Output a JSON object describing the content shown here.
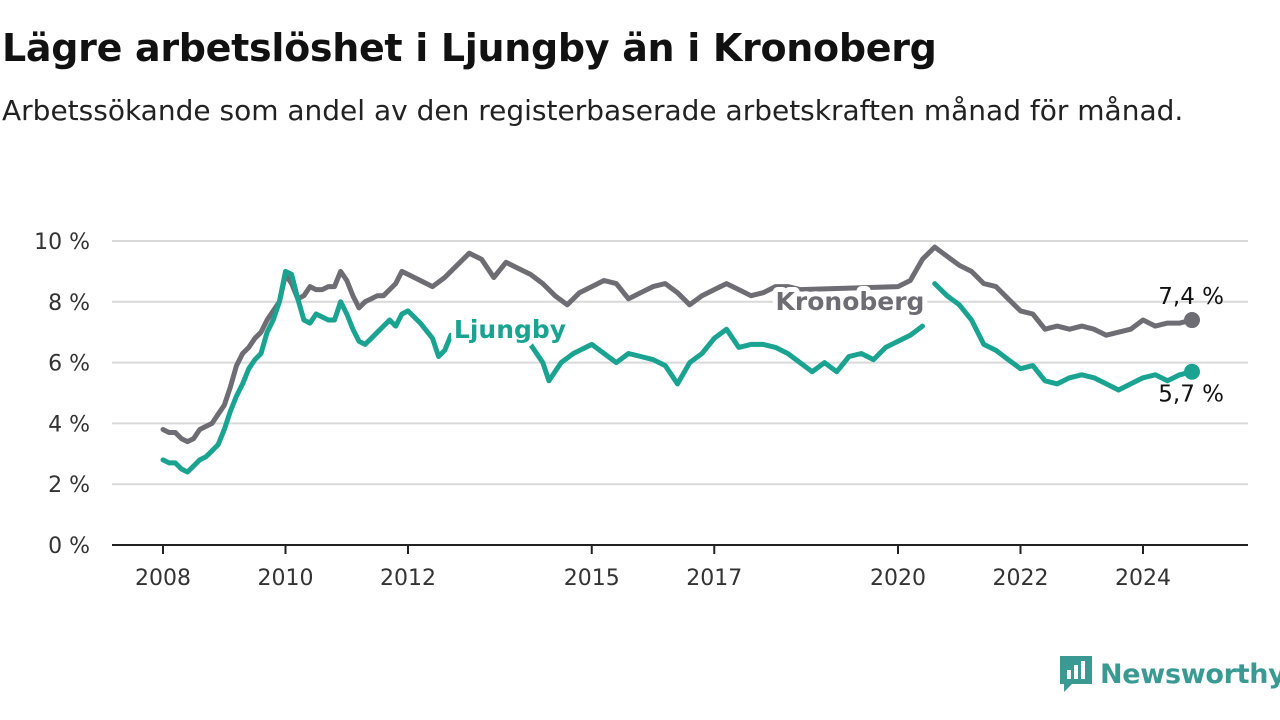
{
  "title": "Lägre arbetslöshet i Ljungby än i Kronoberg",
  "subtitle": "Arbetssökande som andel av den registerbaserade arbetskraften månad för månad.",
  "brand": {
    "name": "Newsworthy",
    "icon": "newsworthy-logo-icon"
  },
  "colors": {
    "kronoberg": "#6e6d73",
    "ljungby": "#1aa391",
    "grid": "#d9d9d9",
    "axis": "#222222"
  },
  "chart_data": {
    "type": "line",
    "unit": "%",
    "xlim": [
      2008,
      2025
    ],
    "ylim": [
      0,
      10
    ],
    "yticks": [
      0,
      2,
      4,
      6,
      8,
      10
    ],
    "ytick_labels": [
      "0 %",
      "2 %",
      "4 %",
      "6 %",
      "8 %",
      "10 %"
    ],
    "xticks": [
      2008,
      2010,
      2012,
      2015,
      2017,
      2020,
      2022,
      2024
    ],
    "xtick_labels": [
      "2008",
      "2010",
      "2012",
      "2015",
      "2017",
      "2020",
      "2022",
      "2024"
    ],
    "grid": true,
    "series": [
      {
        "name": "Kronoberg",
        "end_label": "7,4 %",
        "points": [
          [
            2008.0,
            3.8
          ],
          [
            2008.1,
            3.7
          ],
          [
            2008.2,
            3.7
          ],
          [
            2008.3,
            3.5
          ],
          [
            2008.4,
            3.4
          ],
          [
            2008.5,
            3.5
          ],
          [
            2008.6,
            3.8
          ],
          [
            2008.7,
            3.9
          ],
          [
            2008.8,
            4.0
          ],
          [
            2008.9,
            4.3
          ],
          [
            2009.0,
            4.6
          ],
          [
            2009.1,
            5.2
          ],
          [
            2009.2,
            5.9
          ],
          [
            2009.3,
            6.3
          ],
          [
            2009.4,
            6.5
          ],
          [
            2009.5,
            6.8
          ],
          [
            2009.6,
            7.0
          ],
          [
            2009.7,
            7.4
          ],
          [
            2009.8,
            7.7
          ],
          [
            2009.9,
            8.0
          ],
          [
            2010.0,
            8.9
          ],
          [
            2010.1,
            8.6
          ],
          [
            2010.2,
            8.1
          ],
          [
            2010.3,
            8.2
          ],
          [
            2010.4,
            8.5
          ],
          [
            2010.5,
            8.4
          ],
          [
            2010.6,
            8.4
          ],
          [
            2010.7,
            8.5
          ],
          [
            2010.8,
            8.5
          ],
          [
            2010.9,
            9.0
          ],
          [
            2011.0,
            8.7
          ],
          [
            2011.1,
            8.2
          ],
          [
            2011.2,
            7.8
          ],
          [
            2011.3,
            8.0
          ],
          [
            2011.4,
            8.1
          ],
          [
            2011.5,
            8.2
          ],
          [
            2011.6,
            8.2
          ],
          [
            2011.7,
            8.4
          ],
          [
            2011.8,
            8.6
          ],
          [
            2011.9,
            9.0
          ],
          [
            2012.0,
            8.9
          ],
          [
            2012.2,
            8.7
          ],
          [
            2012.4,
            8.5
          ],
          [
            2012.6,
            8.8
          ],
          [
            2012.8,
            9.2
          ],
          [
            2013.0,
            9.6
          ],
          [
            2013.2,
            9.4
          ],
          [
            2013.4,
            8.8
          ],
          [
            2013.6,
            9.3
          ],
          [
            2013.8,
            9.1
          ],
          [
            2014.0,
            8.9
          ],
          [
            2014.2,
            8.6
          ],
          [
            2014.4,
            8.2
          ],
          [
            2014.6,
            7.9
          ],
          [
            2014.8,
            8.3
          ],
          [
            2015.0,
            8.5
          ],
          [
            2015.2,
            8.7
          ],
          [
            2015.4,
            8.6
          ],
          [
            2015.6,
            8.1
          ],
          [
            2015.8,
            8.3
          ],
          [
            2016.0,
            8.5
          ],
          [
            2016.2,
            8.6
          ],
          [
            2016.4,
            8.3
          ],
          [
            2016.6,
            7.9
          ],
          [
            2016.8,
            8.2
          ],
          [
            2017.0,
            8.4
          ],
          [
            2017.2,
            8.6
          ],
          [
            2017.4,
            8.4
          ],
          [
            2017.6,
            8.2
          ],
          [
            2017.8,
            8.3
          ],
          [
            2018.0,
            8.5
          ],
          [
            2018.2,
            8.5
          ],
          [
            2018.4,
            8.4
          ],
          [
            2020.0,
            8.5
          ],
          [
            2020.2,
            8.7
          ],
          [
            2020.4,
            9.4
          ],
          [
            2020.6,
            9.8
          ],
          [
            2020.8,
            9.5
          ],
          [
            2021.0,
            9.2
          ],
          [
            2021.2,
            9.0
          ],
          [
            2021.4,
            8.6
          ],
          [
            2021.6,
            8.5
          ],
          [
            2021.8,
            8.1
          ],
          [
            2022.0,
            7.7
          ],
          [
            2022.2,
            7.6
          ],
          [
            2022.4,
            7.1
          ],
          [
            2022.6,
            7.2
          ],
          [
            2022.8,
            7.1
          ],
          [
            2023.0,
            7.2
          ],
          [
            2023.2,
            7.1
          ],
          [
            2023.4,
            6.9
          ],
          [
            2023.6,
            7.0
          ],
          [
            2023.8,
            7.1
          ],
          [
            2024.0,
            7.4
          ],
          [
            2024.2,
            7.2
          ],
          [
            2024.4,
            7.3
          ],
          [
            2024.6,
            7.3
          ],
          [
            2024.8,
            7.4
          ]
        ]
      },
      {
        "name": "Ljungby",
        "end_label": "5,7 %",
        "points": [
          [
            2008.0,
            2.8
          ],
          [
            2008.1,
            2.7
          ],
          [
            2008.2,
            2.7
          ],
          [
            2008.3,
            2.5
          ],
          [
            2008.4,
            2.4
          ],
          [
            2008.5,
            2.6
          ],
          [
            2008.6,
            2.8
          ],
          [
            2008.7,
            2.9
          ],
          [
            2008.8,
            3.1
          ],
          [
            2008.9,
            3.3
          ],
          [
            2009.0,
            3.8
          ],
          [
            2009.1,
            4.4
          ],
          [
            2009.2,
            4.9
          ],
          [
            2009.3,
            5.3
          ],
          [
            2009.4,
            5.8
          ],
          [
            2009.5,
            6.1
          ],
          [
            2009.6,
            6.3
          ],
          [
            2009.7,
            7.0
          ],
          [
            2009.8,
            7.4
          ],
          [
            2009.9,
            8.0
          ],
          [
            2010.0,
            9.0
          ],
          [
            2010.1,
            8.9
          ],
          [
            2010.2,
            8.1
          ],
          [
            2010.3,
            7.4
          ],
          [
            2010.4,
            7.3
          ],
          [
            2010.5,
            7.6
          ],
          [
            2010.6,
            7.5
          ],
          [
            2010.7,
            7.4
          ],
          [
            2010.8,
            7.4
          ],
          [
            2010.9,
            8.0
          ],
          [
            2011.0,
            7.6
          ],
          [
            2011.1,
            7.1
          ],
          [
            2011.2,
            6.7
          ],
          [
            2011.3,
            6.6
          ],
          [
            2011.4,
            6.8
          ],
          [
            2011.5,
            7.0
          ],
          [
            2011.6,
            7.2
          ],
          [
            2011.7,
            7.4
          ],
          [
            2011.8,
            7.2
          ],
          [
            2011.9,
            7.6
          ],
          [
            2012.0,
            7.7
          ],
          [
            2012.2,
            7.3
          ],
          [
            2012.4,
            6.8
          ],
          [
            2012.5,
            6.2
          ],
          [
            2012.6,
            6.4
          ],
          [
            2012.7,
            6.9
          ],
          null,
          [
            2014.0,
            6.6
          ],
          [
            2014.2,
            6.0
          ],
          [
            2014.3,
            5.4
          ],
          [
            2014.5,
            6.0
          ],
          [
            2014.7,
            6.3
          ],
          [
            2015.0,
            6.6
          ],
          [
            2015.2,
            6.3
          ],
          [
            2015.4,
            6.0
          ],
          [
            2015.6,
            6.3
          ],
          [
            2015.8,
            6.2
          ],
          [
            2016.0,
            6.1
          ],
          [
            2016.2,
            5.9
          ],
          [
            2016.4,
            5.3
          ],
          [
            2016.6,
            6.0
          ],
          [
            2016.8,
            6.3
          ],
          [
            2017.0,
            6.8
          ],
          [
            2017.2,
            7.1
          ],
          [
            2017.4,
            6.5
          ],
          [
            2017.6,
            6.6
          ],
          [
            2017.8,
            6.6
          ],
          [
            2018.0,
            6.5
          ],
          [
            2018.2,
            6.3
          ],
          [
            2018.4,
            6.0
          ],
          [
            2018.6,
            5.7
          ],
          [
            2018.8,
            6.0
          ],
          [
            2019.0,
            5.7
          ],
          [
            2019.2,
            6.2
          ],
          [
            2019.4,
            6.3
          ],
          [
            2019.6,
            6.1
          ],
          [
            2019.8,
            6.5
          ],
          [
            2020.0,
            6.7
          ],
          [
            2020.2,
            6.9
          ],
          [
            2020.4,
            7.2
          ],
          null,
          [
            2020.6,
            8.6
          ],
          [
            2020.8,
            8.2
          ],
          [
            2021.0,
            7.9
          ],
          [
            2021.2,
            7.4
          ],
          [
            2021.4,
            6.6
          ],
          [
            2021.6,
            6.4
          ],
          [
            2021.8,
            6.1
          ],
          [
            2022.0,
            5.8
          ],
          [
            2022.2,
            5.9
          ],
          [
            2022.4,
            5.4
          ],
          [
            2022.6,
            5.3
          ],
          [
            2022.8,
            5.5
          ],
          [
            2023.0,
            5.6
          ],
          [
            2023.2,
            5.5
          ],
          [
            2023.4,
            5.3
          ],
          [
            2023.6,
            5.1
          ],
          [
            2023.8,
            5.3
          ],
          [
            2024.0,
            5.5
          ],
          [
            2024.2,
            5.6
          ],
          [
            2024.4,
            5.4
          ],
          [
            2024.6,
            5.6
          ],
          [
            2024.8,
            5.7
          ]
        ]
      }
    ]
  }
}
